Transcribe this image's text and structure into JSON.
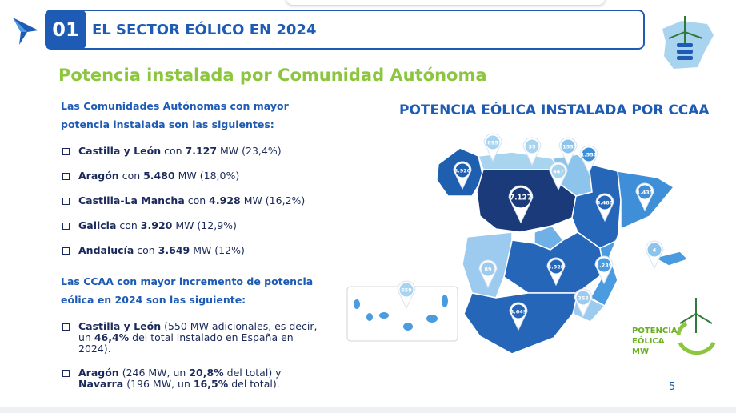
{
  "header": {
    "number": "01",
    "title": "EL SECTOR EÓLICO EN 2024"
  },
  "subtitle": "Potencia instalada por Comunidad Autónoma",
  "intro1": "Las Comunidades Autónomas con mayor potencia instalada son las siguientes:",
  "list1": [
    [
      {
        "text": "Castilla y León",
        "bold": true
      },
      {
        "text": " con "
      },
      {
        "text": "7.127",
        "bold": true
      },
      {
        "text": " MW (23,4%)"
      }
    ],
    [
      {
        "text": "Aragón",
        "bold": true
      },
      {
        "text": " con "
      },
      {
        "text": "5.480",
        "bold": true
      },
      {
        "text": " MW (18,0%)"
      }
    ],
    [
      {
        "text": "Castilla-La Mancha",
        "bold": true
      },
      {
        "text": " con "
      },
      {
        "text": "4.928",
        "bold": true
      },
      {
        "text": " MW (16,2%)"
      }
    ],
    [
      {
        "text": "Galicia",
        "bold": true
      },
      {
        "text": " con "
      },
      {
        "text": "3.920",
        "bold": true
      },
      {
        "text": " MW (12,9%)"
      }
    ],
    [
      {
        "text": "Andalucía",
        "bold": true
      },
      {
        "text": " con "
      },
      {
        "text": "3.649",
        "bold": true
      },
      {
        "text": " MW (12%)"
      }
    ]
  ],
  "intro2": "Las CCAA con mayor incremento de potencia eólica en 2024 son las siguiente:",
  "list2": [
    [
      {
        "text": "Castilla y León",
        "bold": true
      },
      {
        "text": " (550 MW adicionales, es decir, un "
      },
      {
        "text": "46,4%",
        "bold": true
      },
      {
        "text": " del total instalado en España en 2024)."
      }
    ],
    [
      {
        "text": "Aragón",
        "bold": true
      },
      {
        "text": " (246 MW, un "
      },
      {
        "text": "20,8%",
        "bold": true
      },
      {
        "text": " del total) y "
      },
      {
        "text": "Navarra",
        "bold": true
      },
      {
        "text": " (196 MW, un "
      },
      {
        "text": "16,5%",
        "bold": true
      },
      {
        "text": " del total)."
      }
    ]
  ],
  "map": {
    "title": "POTENCIA EÓLICA INSTALADA POR CCAA",
    "pins": [
      "895",
      "35",
      "153",
      "1.557",
      "3.920",
      "447",
      "7.127",
      "5.480",
      "1.435",
      "4",
      "89",
      "4.928",
      "1.239",
      "262",
      "3.649",
      "659"
    ],
    "legend": [
      "POTENCIA",
      "EÓLICA",
      "MW"
    ]
  },
  "page_number": "5"
}
